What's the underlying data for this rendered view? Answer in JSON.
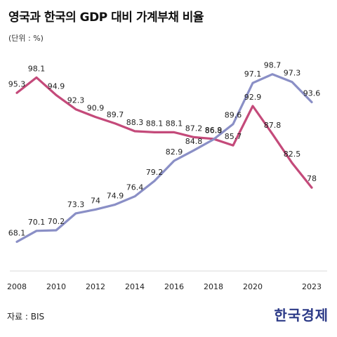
{
  "title": "영국과 한국의 GDP 대비 가계부채 비율",
  "unit": "(단위 : %)",
  "source": "자료 : BIS",
  "brand": "한국경제",
  "colors": {
    "korea": "#8a8fc6",
    "uk": "#c44a7a",
    "axis": "#d9d9d9"
  },
  "chart_data": {
    "type": "line",
    "x": [
      2008,
      2009,
      2010,
      2011,
      2012,
      2013,
      2014,
      2015,
      2016,
      2017,
      2018,
      2019,
      2020,
      2021,
      2022,
      2023
    ],
    "x_ticks": [
      "2008",
      "2010",
      "2012",
      "2014",
      "2016",
      "2018",
      "2020",
      "2023"
    ],
    "ylim": [
      62,
      102
    ],
    "series": [
      {
        "key": "uk",
        "values": [
          95.3,
          98.1,
          94.9,
          92.3,
          90.9,
          89.7,
          88.3,
          88.1,
          88.1,
          87.2,
          86.9,
          85.7,
          92.9,
          87.8,
          82.5,
          78
        ]
      },
      {
        "key": "korea",
        "values": [
          68.1,
          70.1,
          70.2,
          73.3,
          74,
          74.9,
          76.4,
          79.2,
          82.9,
          84.8,
          86.8,
          89.6,
          97.1,
          98.7,
          97.3,
          93.6
        ]
      }
    ],
    "data_labels": {
      "uk": [
        "95.3",
        "98.1",
        "94.9",
        "92.3",
        "90.9",
        "89.7",
        "88.3",
        "88.1",
        "88.1",
        "87.2",
        "86.9",
        "85.7",
        "92.9",
        "87.8",
        "82.5",
        "78"
      ],
      "korea": [
        "68.1",
        "70.1",
        "70.2",
        "73.3",
        "74",
        "74.9",
        "76.4",
        "79.2",
        "82.9",
        "84.8",
        "86.8",
        "89.6",
        "97.1",
        "98.7",
        "97.3",
        "93.6"
      ]
    }
  }
}
